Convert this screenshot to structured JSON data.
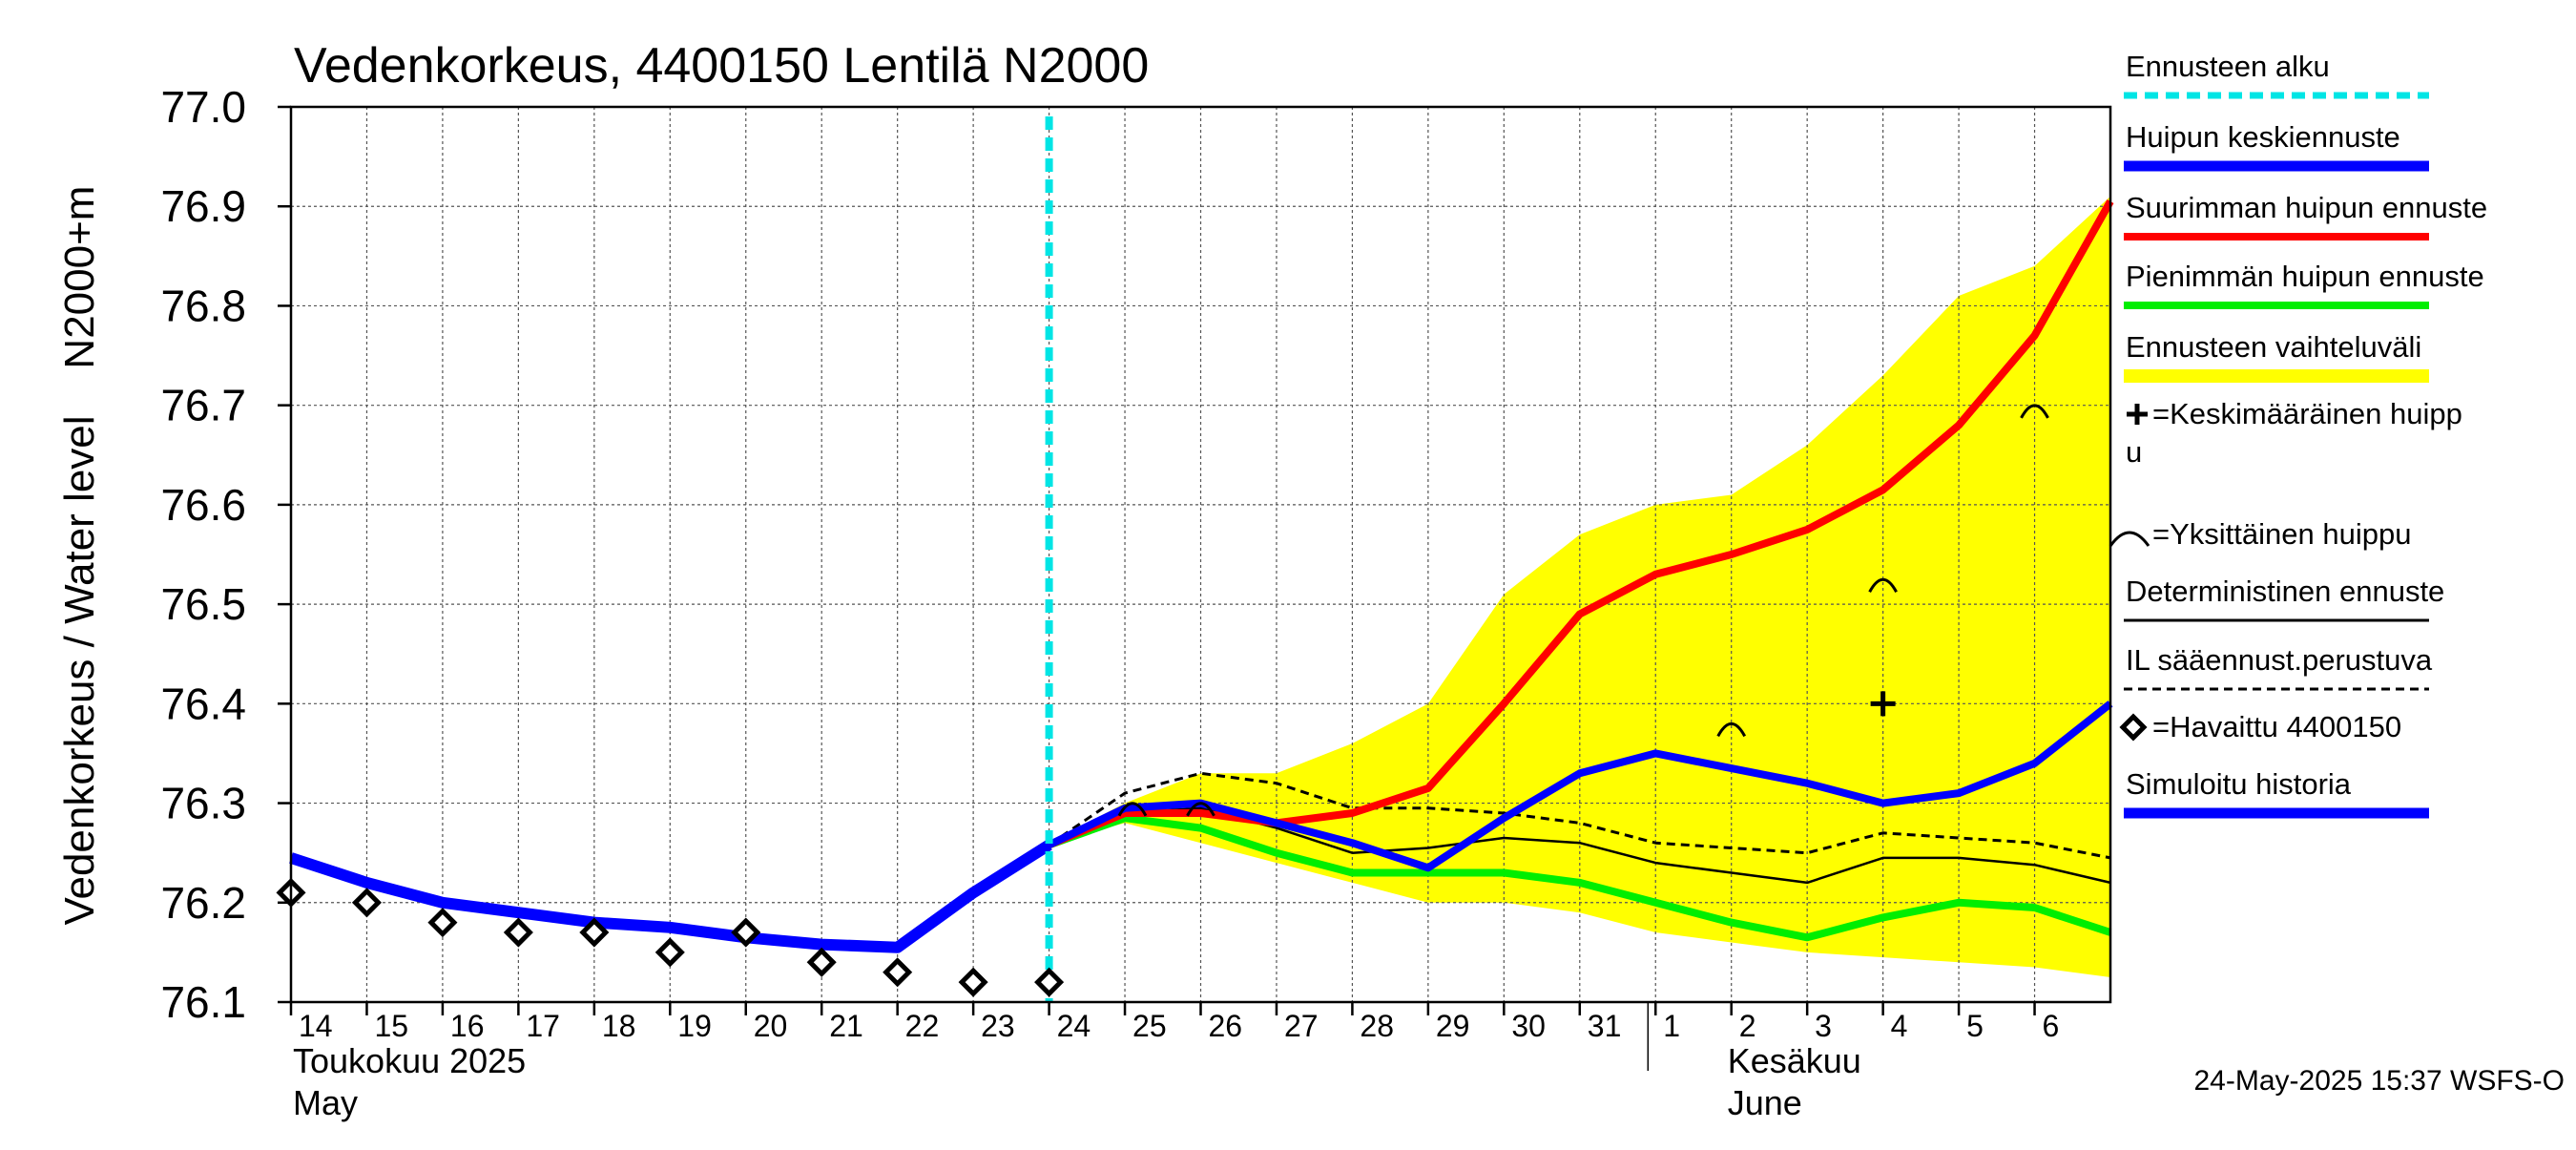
{
  "chart_data": {
    "type": "line",
    "title": "Vedenkorkeus, 4400150 Lentilä N2000",
    "ylabel": "Vedenkorkeus / Water level    N2000+m",
    "ylim": [
      76.1,
      77.0
    ],
    "yticks": [
      "76.1",
      "76.2",
      "76.3",
      "76.4",
      "76.5",
      "76.6",
      "76.7",
      "76.8",
      "76.9",
      "77.0"
    ],
    "x_tick_labels": [
      "14",
      "15",
      "16",
      "17",
      "18",
      "19",
      "20",
      "21",
      "22",
      "23",
      "24",
      "25",
      "26",
      "27",
      "28",
      "29",
      "30",
      "31",
      "1",
      "2",
      "3",
      "4",
      "5",
      "6"
    ],
    "months": [
      {
        "line1": "Toukokuu  2025",
        "line2": "May"
      },
      {
        "line1": "Kesäkuu",
        "line2": "June"
      }
    ],
    "grid": true,
    "forecast_start": 24,
    "colors": {
      "forecast_start": "#00e5e5",
      "mean_peak": "#0000ff",
      "max_peak": "#ff0000",
      "min_peak": "#00ee00",
      "range": "#ffff00",
      "deterministic": "#000000",
      "observed": "#000000",
      "simulated": "#0000ff"
    },
    "series": [
      {
        "key": "range_upper",
        "x": [
          24,
          25,
          26,
          27,
          28,
          29,
          30,
          31,
          32,
          33,
          34,
          35,
          36,
          37,
          38
        ],
        "values": [
          76.26,
          76.3,
          76.33,
          76.33,
          76.36,
          76.4,
          76.51,
          76.57,
          76.6,
          76.61,
          76.66,
          76.73,
          76.81,
          76.84,
          76.91
        ]
      },
      {
        "key": "range_lower",
        "x": [
          24,
          25,
          26,
          27,
          28,
          29,
          30,
          31,
          32,
          33,
          34,
          35,
          36,
          37,
          38
        ],
        "values": [
          76.26,
          76.28,
          76.26,
          76.24,
          76.22,
          76.2,
          76.2,
          76.19,
          76.17,
          76.16,
          76.15,
          76.145,
          76.14,
          76.135,
          76.125
        ]
      },
      {
        "key": "simulated",
        "x": [
          14,
          15,
          16,
          17,
          18,
          19,
          20,
          21,
          22,
          23,
          24
        ],
        "values": [
          76.245,
          76.22,
          76.2,
          76.19,
          76.18,
          76.175,
          76.165,
          76.158,
          76.155,
          76.21,
          76.258
        ]
      },
      {
        "key": "max_peak",
        "x": [
          24,
          25,
          26,
          27,
          28,
          29,
          30,
          31,
          32,
          33,
          34,
          35,
          36,
          37,
          38
        ],
        "values": [
          76.258,
          76.29,
          76.29,
          76.28,
          76.29,
          76.315,
          76.4,
          76.49,
          76.53,
          76.55,
          76.575,
          76.615,
          76.68,
          76.77,
          76.905
        ]
      },
      {
        "key": "min_peak",
        "x": [
          24,
          25,
          26,
          27,
          28,
          29,
          30,
          31,
          32,
          33,
          34,
          35,
          36,
          37,
          38
        ],
        "values": [
          76.258,
          76.285,
          76.275,
          76.25,
          76.23,
          76.23,
          76.23,
          76.22,
          76.2,
          76.18,
          76.165,
          76.185,
          76.2,
          76.195,
          76.17
        ]
      },
      {
        "key": "mean_peak",
        "x": [
          24,
          25,
          26,
          27,
          28,
          29,
          30,
          31,
          32,
          33,
          34,
          35,
          36,
          37,
          38
        ],
        "values": [
          76.258,
          76.295,
          76.3,
          76.28,
          76.26,
          76.235,
          76.285,
          76.33,
          76.35,
          76.335,
          76.32,
          76.3,
          76.31,
          76.34,
          76.4
        ]
      },
      {
        "key": "deterministic",
        "x": [
          24,
          25,
          26,
          27,
          28,
          29,
          30,
          31,
          32,
          33,
          34,
          35,
          36,
          37,
          38
        ],
        "values": [
          76.258,
          76.29,
          76.295,
          76.275,
          76.25,
          76.255,
          76.265,
          76.26,
          76.24,
          76.23,
          76.22,
          76.245,
          76.245,
          76.238,
          76.22
        ]
      },
      {
        "key": "il_forecast",
        "x": [
          24,
          25,
          26,
          27,
          28,
          29,
          30,
          31,
          32,
          33,
          34,
          35,
          36,
          37,
          38
        ],
        "values": [
          76.258,
          76.31,
          76.33,
          76.32,
          76.295,
          76.295,
          76.29,
          76.28,
          76.26,
          76.255,
          76.25,
          76.27,
          76.265,
          76.26,
          76.245
        ]
      },
      {
        "key": "observed",
        "x": [
          14,
          15,
          16,
          17,
          18,
          19,
          20,
          21,
          22,
          23,
          24
        ],
        "values": [
          76.21,
          76.2,
          76.18,
          76.17,
          76.17,
          76.15,
          76.17,
          76.14,
          76.13,
          76.12,
          76.12
        ]
      }
    ],
    "single_peaks": [
      {
        "x": 25.1,
        "y": 76.295
      },
      {
        "x": 26.0,
        "y": 76.295
      },
      {
        "x": 33.0,
        "y": 76.375
      },
      {
        "x": 35.0,
        "y": 76.52
      },
      {
        "x": 37.0,
        "y": 76.695
      }
    ],
    "mean_peak_marker": {
      "x": 35.0,
      "y": 76.4
    },
    "legend": [
      {
        "label": "Ennusteen alku",
        "style": "cyan-dashed"
      },
      {
        "label": "Huipun keskiennuste",
        "style": "blue-thick"
      },
      {
        "label": "Suurimman huipun ennuste",
        "style": "red-thick"
      },
      {
        "label": "Pienimmän huipun ennuste",
        "style": "green-thick"
      },
      {
        "label": "Ennusteen vaihteluväli",
        "style": "yellow-band"
      },
      {
        "label": "=Keskimääräinen huipp",
        "label2": "u",
        "style": "plus-marker"
      },
      {
        "label": "=Yksittäinen huippu",
        "style": "arc-marker"
      },
      {
        "label": "Deterministinen ennuste",
        "style": "black-thin"
      },
      {
        "label": "IL sääennust.perustuva",
        "style": "black-dashed"
      },
      {
        "label": "=Havaittu 4400150",
        "style": "diamond-marker"
      },
      {
        "label": "Simuloitu historia",
        "style": "blue-thick"
      }
    ],
    "footer": "24-May-2025 15:37 WSFS-O"
  }
}
